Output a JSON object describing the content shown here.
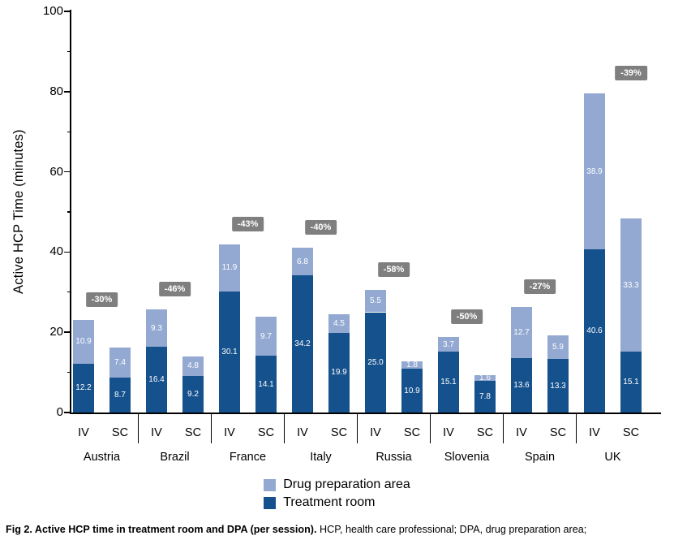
{
  "chart_data": {
    "type": "bar",
    "stacked": true,
    "title": "",
    "ylabel": "Active HCP Time (minutes)",
    "xlabel": "",
    "ylim": [
      0,
      100
    ],
    "yticks": [
      0,
      20,
      40,
      60,
      80,
      100
    ],
    "minor_yticks": [
      10,
      30,
      50,
      70,
      90
    ],
    "grid": false,
    "legend_position": "bottom",
    "series": [
      {
        "name": "Drug preparation area",
        "color": "#93a9d2"
      },
      {
        "name": "Treatment room",
        "color": "#15518c"
      }
    ],
    "groups": [
      {
        "country": "Austria",
        "note": "-30%",
        "bars": [
          {
            "label": "IV",
            "treatment_room": 12.2,
            "drug_preparation_area": 10.9
          },
          {
            "label": "SC",
            "treatment_room": 8.7,
            "drug_preparation_area": 7.4
          }
        ]
      },
      {
        "country": "Brazil",
        "note": "-46%",
        "bars": [
          {
            "label": "IV",
            "treatment_room": 16.4,
            "drug_preparation_area": 9.3
          },
          {
            "label": "SC",
            "treatment_room": 9.2,
            "drug_preparation_area": 4.8
          }
        ]
      },
      {
        "country": "France",
        "note": "-43%",
        "bars": [
          {
            "label": "IV",
            "treatment_room": 30.1,
            "drug_preparation_area": 11.9
          },
          {
            "label": "SC",
            "treatment_room": 14.1,
            "drug_preparation_area": 9.7
          }
        ]
      },
      {
        "country": "Italy",
        "note": "-40%",
        "bars": [
          {
            "label": "IV",
            "treatment_room": 34.2,
            "drug_preparation_area": 6.8
          },
          {
            "label": "SC",
            "treatment_room": 19.9,
            "drug_preparation_area": 4.5
          }
        ]
      },
      {
        "country": "Russia",
        "note": "-58%",
        "bars": [
          {
            "label": "IV",
            "treatment_room": 25.0,
            "drug_preparation_area": 5.5
          },
          {
            "label": "SC",
            "treatment_room": 10.9,
            "drug_preparation_area": 1.8
          }
        ]
      },
      {
        "country": "Slovenia",
        "note": "-50%",
        "bars": [
          {
            "label": "IV",
            "treatment_room": 15.1,
            "drug_preparation_area": 3.7
          },
          {
            "label": "SC",
            "treatment_room": 7.8,
            "drug_preparation_area": 1.6
          }
        ]
      },
      {
        "country": "Spain",
        "note": "-27%",
        "bars": [
          {
            "label": "IV",
            "treatment_room": 13.6,
            "drug_preparation_area": 12.7
          },
          {
            "label": "SC",
            "treatment_room": 13.3,
            "drug_preparation_area": 5.9
          }
        ]
      },
      {
        "country": "UK",
        "note": "-39%",
        "note_over": "sc",
        "bars": [
          {
            "label": "IV",
            "treatment_room": 40.6,
            "drug_preparation_area": 38.9
          },
          {
            "label": "SC",
            "treatment_room": 15.1,
            "drug_preparation_area": 33.3
          }
        ]
      }
    ]
  },
  "caption": {
    "title": "Fig 2. Active HCP time in treatment room and DPA (per session).",
    "text": "HCP, health care professional; DPA, drug preparation area;"
  }
}
